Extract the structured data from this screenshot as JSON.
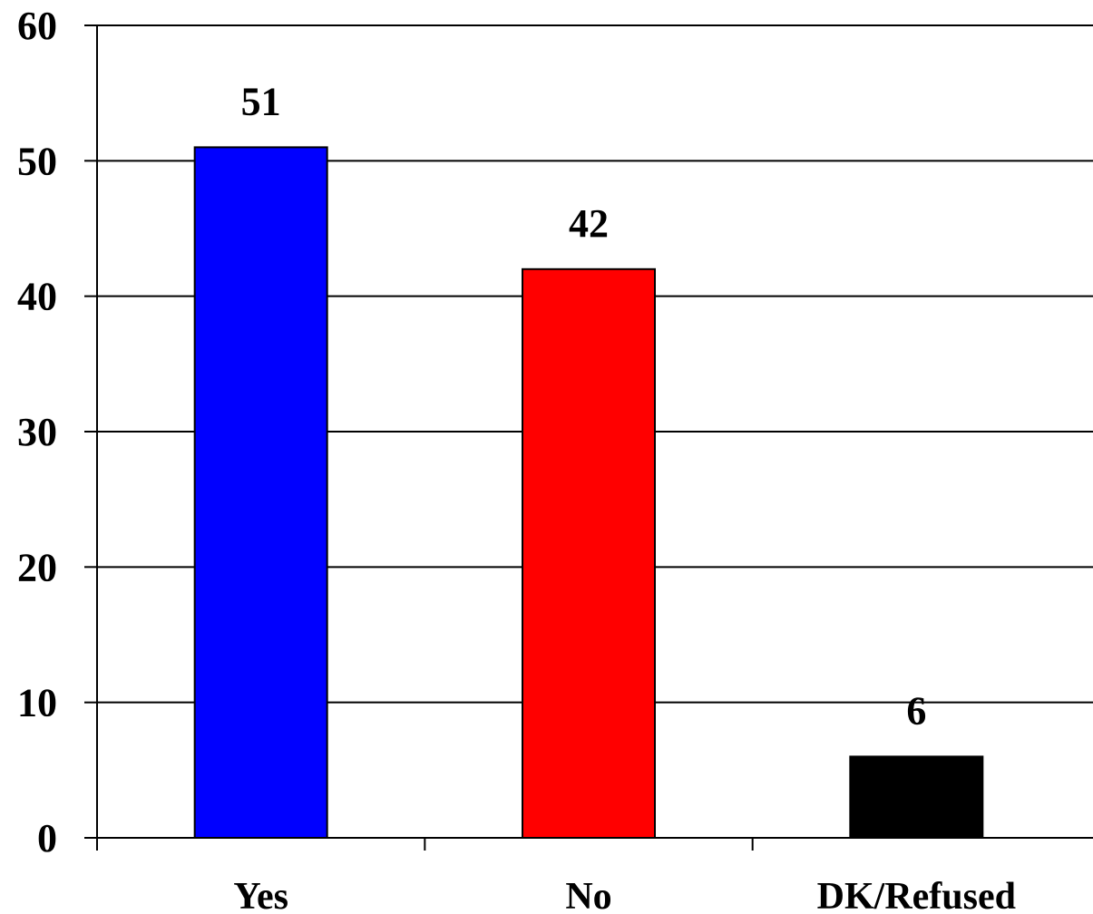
{
  "chart_data": {
    "type": "bar",
    "categories": [
      "Yes",
      "No",
      "DK/Refused"
    ],
    "values": [
      51,
      42,
      6
    ],
    "data_labels": [
      "51",
      "42",
      "6"
    ],
    "colors": [
      "#0000ff",
      "#ff0000",
      "#000000"
    ],
    "yticks": [
      0,
      10,
      20,
      30,
      40,
      50,
      60
    ],
    "ytick_labels": [
      "0",
      "10",
      "20",
      "30",
      "40",
      "50",
      "60"
    ],
    "ylim": [
      0,
      60
    ],
    "grid": true,
    "legend": "none"
  }
}
